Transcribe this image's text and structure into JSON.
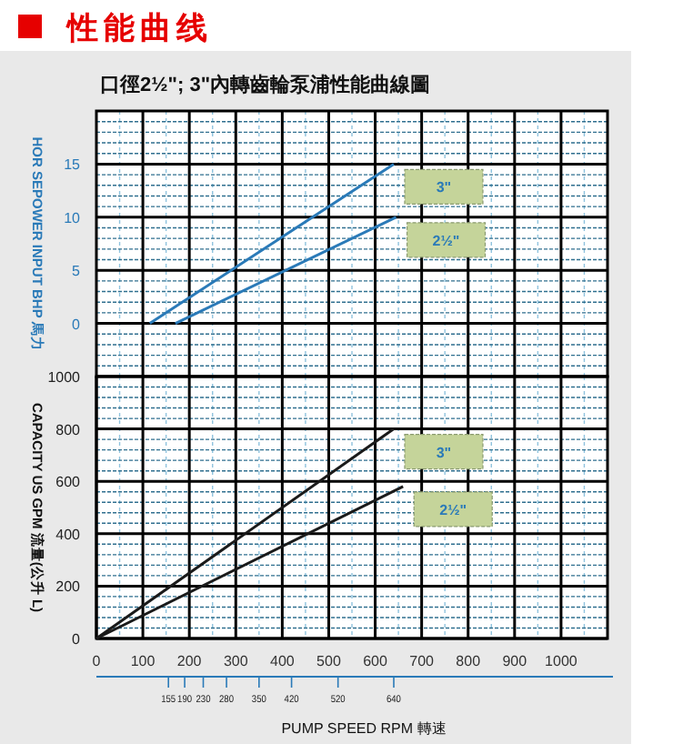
{
  "chart_data": [
    {
      "type": "line",
      "title": "性能曲线",
      "subtitle": "口徑2½\"; 3\"內轉齒輪泵浦性能曲線圖",
      "ylabel": "HOR SEPOWER INPUT BHP 馬力",
      "xlim": [
        0,
        1100
      ],
      "ylim": [
        -5,
        20
      ],
      "xticks": [
        {
          "value": 50,
          "label": null
        },
        100,
        {
          "value": 150,
          "label": null
        },
        200,
        {
          "value": 250,
          "label": null
        },
        300,
        {
          "value": 350,
          "label": null
        },
        400,
        {
          "value": 450,
          "label": null
        },
        500,
        {
          "value": 550,
          "label": null
        },
        600,
        {
          "value": 650,
          "label": null
        },
        700,
        {
          "value": 750,
          "label": null
        },
        800,
        {
          "value": 850,
          "label": null
        },
        900,
        {
          "value": 950,
          "label": null
        },
        1000,
        {
          "value": 1050,
          "label": null
        }
      ],
      "yticks": [
        {
          "value": -4,
          "label": null
        },
        {
          "value": -3,
          "label": null
        },
        {
          "value": -2,
          "label": null
        },
        {
          "value": -1,
          "label": null
        },
        0,
        {
          "value": 1,
          "label": null
        },
        {
          "value": 2,
          "label": null
        },
        {
          "value": 3,
          "label": null
        },
        {
          "value": 4,
          "label": null
        },
        5,
        {
          "value": 6,
          "label": null
        },
        {
          "value": 7,
          "label": null
        },
        {
          "value": 8,
          "label": null
        },
        {
          "value": 9,
          "label": null
        },
        10,
        {
          "value": 11,
          "label": null
        },
        {
          "value": 12,
          "label": null
        },
        {
          "value": 13,
          "label": null
        },
        {
          "value": 14,
          "label": null
        },
        15,
        {
          "value": 16,
          "label": null
        },
        {
          "value": 17,
          "label": null
        },
        {
          "value": 18,
          "label": null
        },
        {
          "value": 19,
          "label": null
        }
      ],
      "tick_labels": "y",
      "grid": true,
      "series": [
        {
          "name": "3\"",
          "color": "#2a7ab8",
          "x": [
            115,
            640
          ],
          "values": [
            0,
            15
          ]
        },
        {
          "name": "2½\"",
          "color": "#2a7ab8",
          "x": [
            170,
            645
          ],
          "values": [
            0,
            10
          ]
        }
      ]
    },
    {
      "type": "line",
      "ylabel": "CAPACITY US GPM 流量(公升 L)",
      "xlim": [
        0,
        1100
      ],
      "xticks": [
        0,
        {
          "value": 50,
          "label": null
        },
        100,
        {
          "value": 150,
          "label": null
        },
        200,
        {
          "value": 250,
          "label": null
        },
        300,
        {
          "value": 350,
          "label": null
        },
        400,
        {
          "value": 450,
          "label": null
        },
        500,
        {
          "value": 550,
          "label": null
        },
        600,
        {
          "value": 650,
          "label": null
        },
        700,
        {
          "value": 750,
          "label": null
        },
        800,
        {
          "value": 850,
          "label": null
        },
        900,
        {
          "value": 950,
          "label": null
        },
        1000,
        {
          "value": 1050,
          "label": null
        }
      ],
      "ylim": [
        0,
        1000
      ],
      "yticks": [
        0,
        {
          "value": 40,
          "label": null
        },
        {
          "value": 80,
          "label": null
        },
        {
          "value": 120,
          "label": null
        },
        {
          "value": 160,
          "label": null
        },
        200,
        {
          "value": 240,
          "label": null
        },
        {
          "value": 280,
          "label": null
        },
        {
          "value": 320,
          "label": null
        },
        {
          "value": 360,
          "label": null
        },
        400,
        {
          "value": 440,
          "label": null
        },
        {
          "value": 480,
          "label": null
        },
        {
          "value": 520,
          "label": null
        },
        {
          "value": 560,
          "label": null
        },
        600,
        {
          "value": 640,
          "label": null
        },
        {
          "value": 680,
          "label": null
        },
        {
          "value": 720,
          "label": null
        },
        {
          "value": 760,
          "label": null
        },
        800,
        {
          "value": 840,
          "label": null
        },
        {
          "value": 880,
          "label": null
        },
        {
          "value": 920,
          "label": null
        },
        {
          "value": 960,
          "label": null
        },
        1000
      ],
      "x2lim": [
        0,
        1100
      ],
      "x2ticks": [
        155,
        190,
        230,
        280,
        350,
        420,
        520,
        640
      ],
      "x2label": "PUMP SPEED RPM 轉速",
      "grid": true,
      "series": [
        {
          "name": "3\"",
          "color": "#1a1a1a",
          "x": [
            0,
            640
          ],
          "values": [
            0,
            800
          ]
        },
        {
          "name": "2½\"",
          "color": "#1a1a1a",
          "x": [
            0,
            660
          ],
          "values": [
            0,
            580
          ]
        }
      ]
    }
  ]
}
